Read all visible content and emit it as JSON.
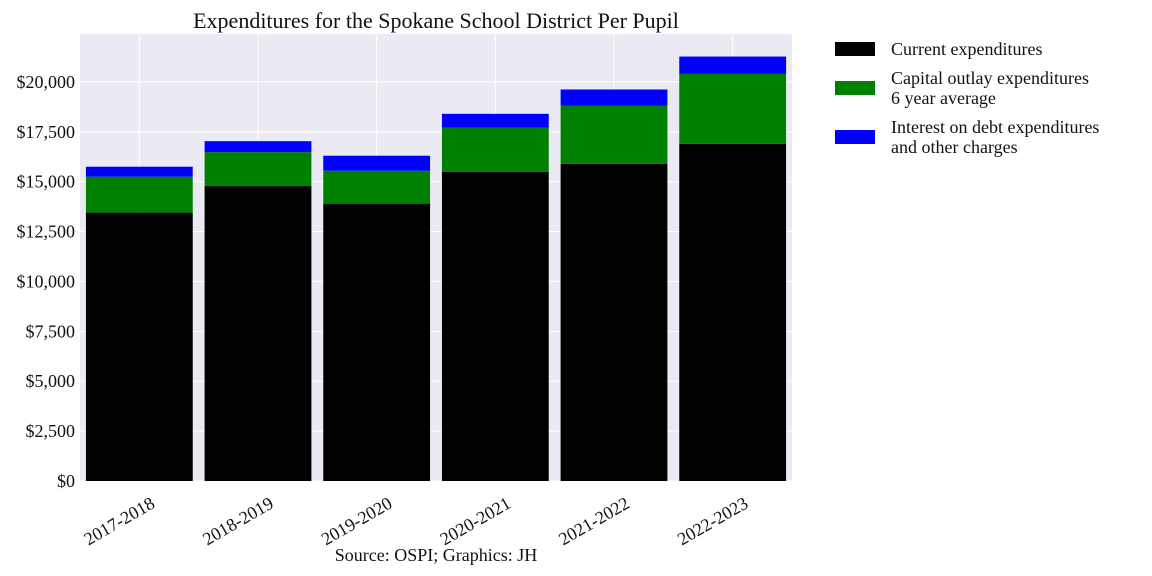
{
  "chart_data": {
    "type": "bar",
    "stacked": true,
    "title": "Expenditures for the Spokane School District Per Pupil",
    "caption": "Source: OSPI; Graphics: JH",
    "xlabel": "",
    "ylabel": "",
    "categories": [
      "2017-2018",
      "2018-2019",
      "2019-2020",
      "2020-2021",
      "2021-2022",
      "2022-2023"
    ],
    "ylim": [
      0,
      22400
    ],
    "yticks": [
      0,
      2500,
      5000,
      7500,
      10000,
      12500,
      15000,
      17500,
      20000
    ],
    "ytick_labels": [
      "$0",
      "$2,500",
      "$5,000",
      "$7,500",
      "$10,000",
      "$12,500",
      "$15,000",
      "$17,500",
      "$20,000"
    ],
    "grid": true,
    "legend_position": "outside-right-top",
    "series": [
      {
        "name": "Current expenditures",
        "color": "#000000",
        "values": [
          13450,
          14780,
          13900,
          15500,
          15900,
          16900
        ]
      },
      {
        "name": "Capital outlay expenditures\n6 year average",
        "color": "#008000",
        "values": [
          1800,
          1700,
          1650,
          2200,
          2900,
          3500
        ]
      },
      {
        "name": "Interest on debt expenditures\nand other charges",
        "color": "#0000ff",
        "values": [
          500,
          550,
          750,
          700,
          820,
          870
        ]
      }
    ]
  }
}
